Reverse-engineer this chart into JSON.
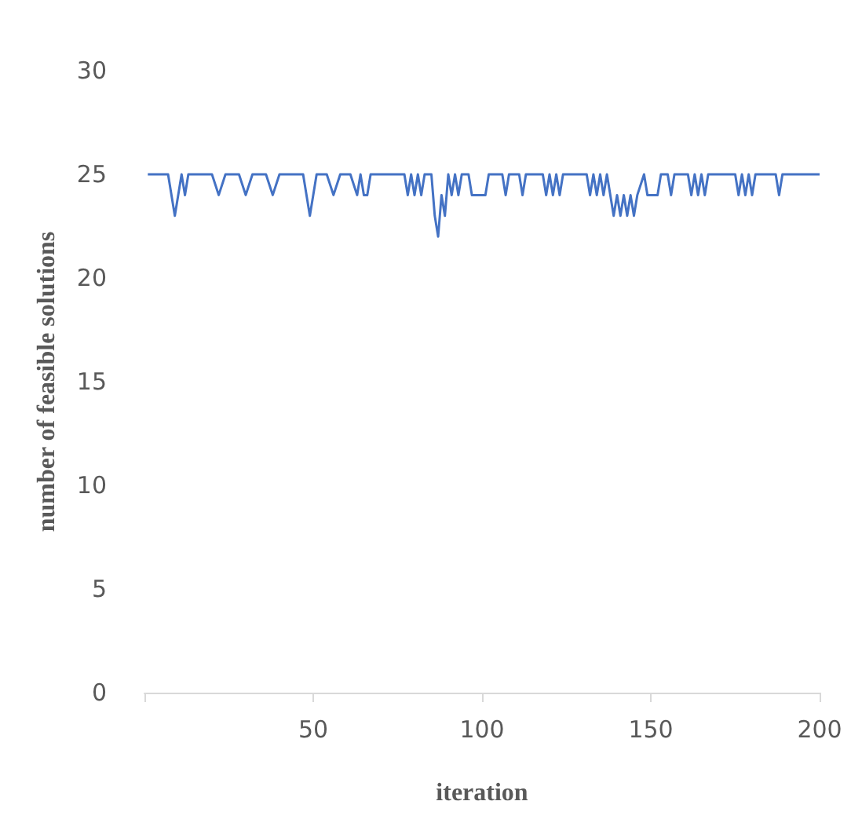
{
  "chart_data": {
    "type": "line",
    "xlabel": "iteration",
    "ylabel": "number of feasible solutions",
    "xlim": [
      0,
      200
    ],
    "xticks": [
      {
        "value": 0,
        "label": null
      },
      50,
      100,
      150,
      200
    ],
    "ylim": [
      0,
      30
    ],
    "yticks": [
      0,
      5,
      10,
      15,
      20,
      25,
      30
    ],
    "grid": false,
    "marker": "none",
    "line_style": "solid",
    "series": [
      {
        "color": "#4472c4",
        "x": [
          1,
          7,
          9,
          11,
          12,
          13,
          20,
          22,
          24,
          28,
          30,
          32,
          36,
          38,
          40,
          47,
          49,
          51,
          54,
          56,
          58,
          61,
          63,
          64,
          65,
          66,
          67,
          77,
          78,
          79,
          80,
          81,
          82,
          83,
          85,
          86,
          87,
          88,
          89,
          90,
          91,
          92,
          93,
          94,
          96,
          97,
          101,
          102,
          106,
          107,
          108,
          111,
          112,
          113,
          118,
          119,
          120,
          121,
          122,
          123,
          124,
          131,
          132,
          133,
          134,
          135,
          136,
          137,
          139,
          140,
          141,
          142,
          143,
          144,
          145,
          146,
          148,
          149,
          152,
          153,
          155,
          156,
          157,
          161,
          162,
          163,
          164,
          165,
          166,
          167,
          175,
          176,
          177,
          178,
          179,
          180,
          181,
          187,
          188,
          189,
          200
        ],
        "values": [
          25,
          25,
          23,
          25,
          24,
          25,
          25,
          24,
          25,
          25,
          24,
          25,
          25,
          24,
          25,
          25,
          23,
          25,
          25,
          24,
          25,
          25,
          24,
          25,
          24,
          24,
          25,
          25,
          24,
          25,
          24,
          25,
          24,
          25,
          25,
          23,
          22,
          24,
          23,
          25,
          24,
          25,
          24,
          25,
          25,
          24,
          24,
          25,
          25,
          24,
          25,
          25,
          24,
          25,
          25,
          24,
          25,
          24,
          25,
          24,
          25,
          25,
          24,
          25,
          24,
          25,
          24,
          25,
          23,
          24,
          23,
          24,
          23,
          24,
          23,
          24,
          25,
          24,
          24,
          25,
          25,
          24,
          25,
          25,
          24,
          25,
          24,
          25,
          24,
          25,
          25,
          24,
          25,
          24,
          25,
          24,
          25,
          25,
          24,
          25,
          25
        ]
      }
    ]
  }
}
